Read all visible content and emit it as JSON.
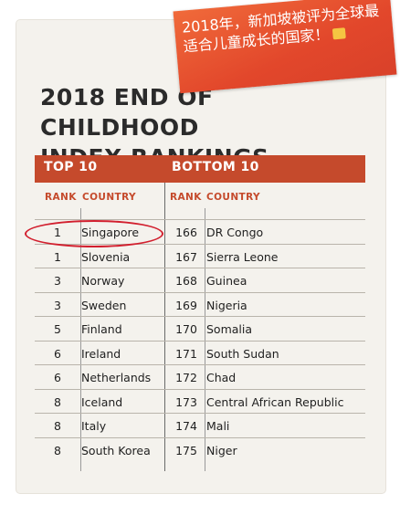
{
  "sticker": {
    "text": "2018年，新加坡被评为全球最适合儿童成长的国家！"
  },
  "title": {
    "line1": "2018 END OF CHILDHOOD",
    "line2": "INDEX RANKINGS"
  },
  "header": {
    "left": "TOP 10",
    "right": "BOTTOM 10"
  },
  "columns": {
    "rank": "RANK",
    "country": "COUNTRY"
  },
  "top10": [
    {
      "rank": "1",
      "country": "Singapore"
    },
    {
      "rank": "1",
      "country": "Slovenia"
    },
    {
      "rank": "3",
      "country": "Norway"
    },
    {
      "rank": "3",
      "country": "Sweden"
    },
    {
      "rank": "5",
      "country": "Finland"
    },
    {
      "rank": "6",
      "country": "Ireland"
    },
    {
      "rank": "6",
      "country": "Netherlands"
    },
    {
      "rank": "8",
      "country": "Iceland"
    },
    {
      "rank": "8",
      "country": "Italy"
    },
    {
      "rank": "8",
      "country": "South Korea"
    }
  ],
  "bottom10": [
    {
      "rank": "166",
      "country": "DR Congo"
    },
    {
      "rank": "167",
      "country": "Sierra Leone"
    },
    {
      "rank": "168",
      "country": "Guinea"
    },
    {
      "rank": "169",
      "country": "Nigeria"
    },
    {
      "rank": "170",
      "country": "Somalia"
    },
    {
      "rank": "171",
      "country": "South Sudan"
    },
    {
      "rank": "172",
      "country": "Chad"
    },
    {
      "rank": "173",
      "country": "Central African Republic"
    },
    {
      "rank": "174",
      "country": "Mali"
    },
    {
      "rank": "175",
      "country": "Niger"
    }
  ],
  "colors": {
    "accent": "#c54a2c",
    "highlight_circle": "#d21f2e",
    "sticker": "#e2472b"
  }
}
